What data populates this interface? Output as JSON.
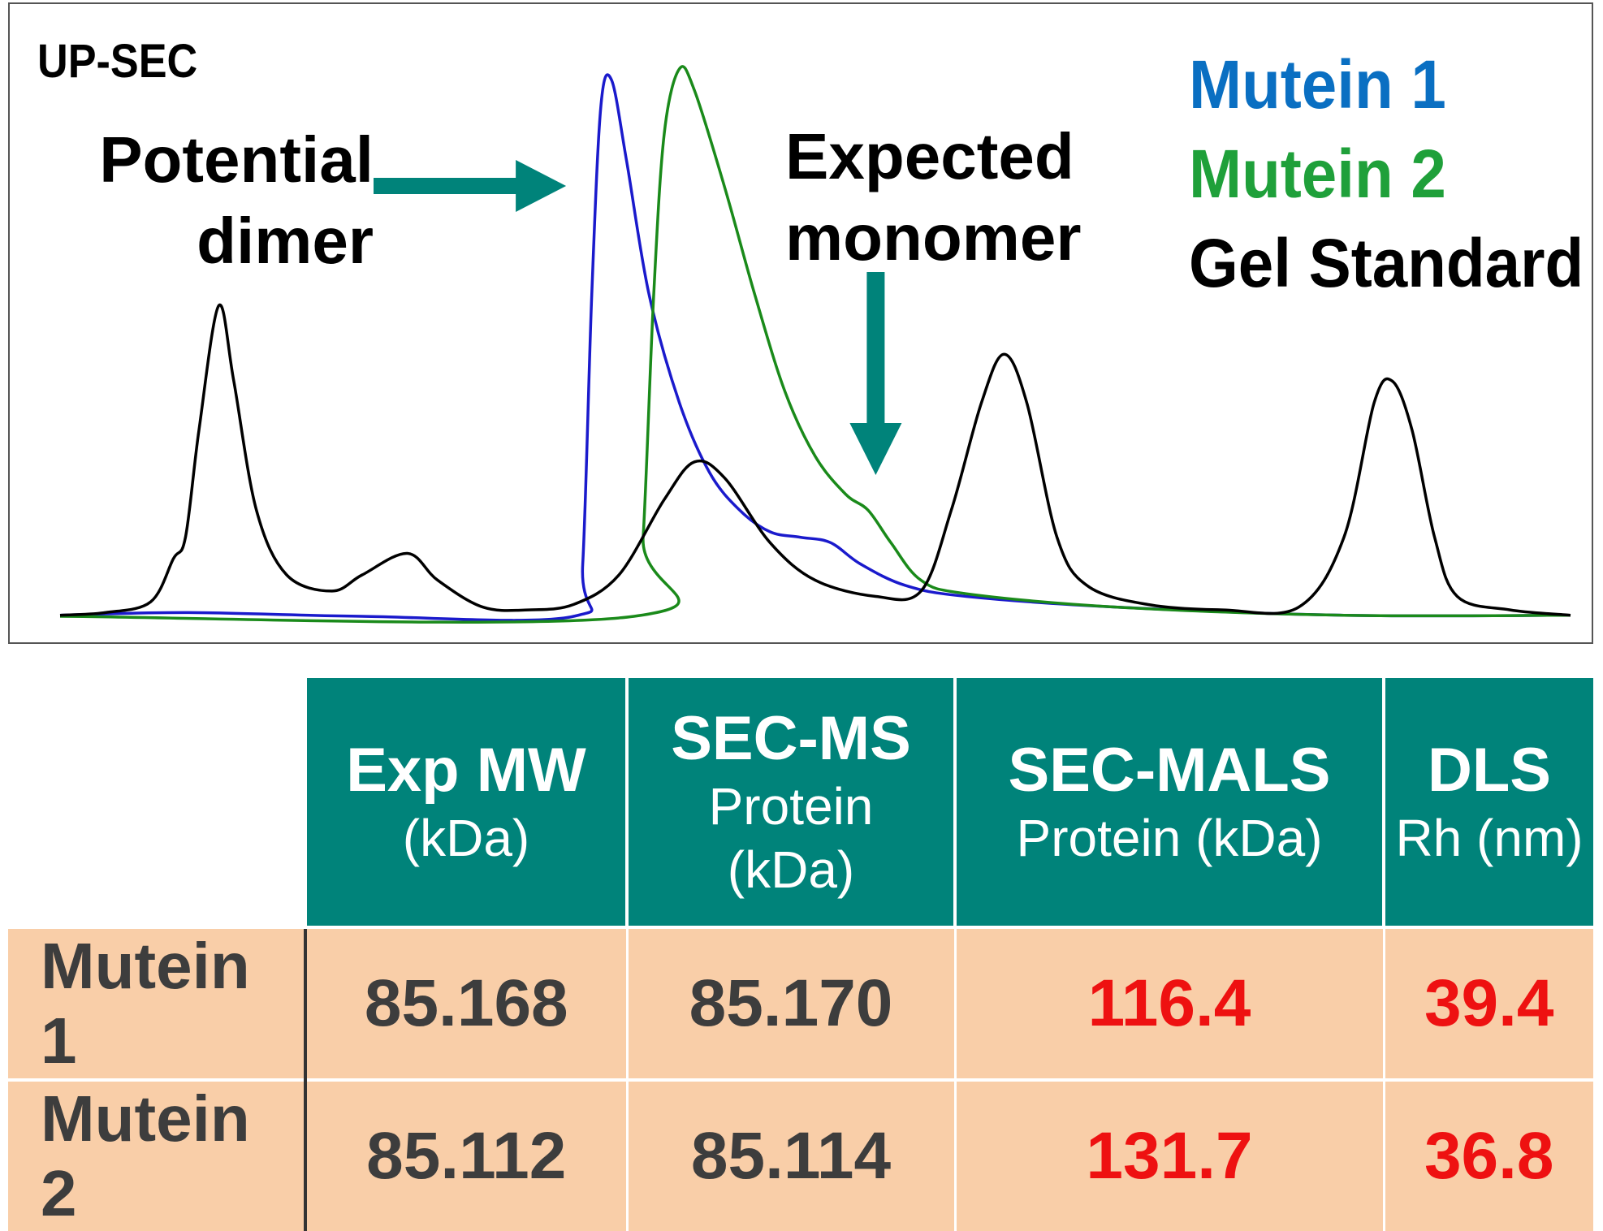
{
  "chart_data": {
    "type": "line",
    "title": "UP-SEC",
    "xlabel": "",
    "ylabel": "",
    "grid": false,
    "legend_placement": "top-right",
    "series": [
      {
        "name": "Mutein 1",
        "color": "#0a6fc2",
        "line_color": "#1a1acc",
        "points": [
          [
            0,
            0.005
          ],
          [
            8.5,
            0.01
          ],
          [
            20,
            0.003
          ],
          [
            34,
            0.003
          ],
          [
            34.6,
            0.1
          ],
          [
            35.2,
            0.6
          ],
          [
            35.8,
            0.95
          ],
          [
            36.5,
            1.0
          ],
          [
            37.5,
            0.85
          ],
          [
            39,
            0.6
          ],
          [
            41,
            0.4
          ],
          [
            43,
            0.27
          ],
          [
            45,
            0.2
          ],
          [
            47,
            0.16
          ],
          [
            49,
            0.15
          ],
          [
            51,
            0.14
          ],
          [
            53,
            0.1
          ],
          [
            56,
            0.06
          ],
          [
            60,
            0.04
          ],
          [
            70,
            0.02
          ],
          [
            85,
            0.005
          ],
          [
            100,
            0.005
          ]
        ]
      },
      {
        "name": "Mutein 2",
        "color": "#1fa03a",
        "line_color": "#1a8a1a",
        "points": [
          [
            0,
            0.003
          ],
          [
            38,
            0.003
          ],
          [
            38.6,
            0.15
          ],
          [
            39.3,
            0.6
          ],
          [
            40,
            0.9
          ],
          [
            41,
            1.02
          ],
          [
            42,
            0.98
          ],
          [
            44,
            0.8
          ],
          [
            46,
            0.6
          ],
          [
            48,
            0.42
          ],
          [
            50,
            0.3
          ],
          [
            52,
            0.23
          ],
          [
            53.5,
            0.2
          ],
          [
            55,
            0.14
          ],
          [
            57,
            0.07
          ],
          [
            60,
            0.045
          ],
          [
            70,
            0.02
          ],
          [
            85,
            0.005
          ],
          [
            100,
            0.005
          ]
        ]
      },
      {
        "name": "Gel Standard",
        "color": "#000000",
        "line_color": "#000000",
        "points": [
          [
            0,
            0.005
          ],
          [
            3,
            0.01
          ],
          [
            6,
            0.03
          ],
          [
            7.5,
            0.11
          ],
          [
            8.3,
            0.15
          ],
          [
            9.2,
            0.35
          ],
          [
            10.5,
            0.58
          ],
          [
            11.5,
            0.44
          ],
          [
            13,
            0.2
          ],
          [
            15,
            0.08
          ],
          [
            18,
            0.05
          ],
          [
            20,
            0.08
          ],
          [
            23,
            0.12
          ],
          [
            25,
            0.07
          ],
          [
            28,
            0.02
          ],
          [
            31,
            0.015
          ],
          [
            34,
            0.025
          ],
          [
            37,
            0.08
          ],
          [
            40,
            0.22
          ],
          [
            42,
            0.29
          ],
          [
            44,
            0.26
          ],
          [
            47,
            0.14
          ],
          [
            50,
            0.07
          ],
          [
            54,
            0.04
          ],
          [
            57,
            0.05
          ],
          [
            59,
            0.2
          ],
          [
            61,
            0.4
          ],
          [
            62.5,
            0.49
          ],
          [
            64,
            0.4
          ],
          [
            66,
            0.15
          ],
          [
            68,
            0.06
          ],
          [
            72,
            0.025
          ],
          [
            77,
            0.015
          ],
          [
            82,
            0.02
          ],
          [
            85,
            0.15
          ],
          [
            87,
            0.4
          ],
          [
            88.2,
            0.44
          ],
          [
            89.5,
            0.35
          ],
          [
            91,
            0.15
          ],
          [
            92.5,
            0.04
          ],
          [
            96,
            0.015
          ],
          [
            100,
            0.005
          ]
        ]
      }
    ],
    "xlim": [
      0,
      100
    ],
    "ylim": [
      0,
      1.05
    ],
    "annotations": [
      {
        "text": "Potential dimer",
        "arrow": "right",
        "color": "#00837a",
        "target_x": 33.5
      },
      {
        "text": "Expected monomer",
        "arrow": "down",
        "color": "#00837a",
        "target_x": 54
      }
    ]
  },
  "table": {
    "headers": [
      {
        "main": "",
        "sub": []
      },
      {
        "main": "Exp MW",
        "sub": [
          "(kDa)"
        ]
      },
      {
        "main": "SEC-MS",
        "sub": [
          "Protein",
          "(kDa)"
        ]
      },
      {
        "main": "SEC-MALS",
        "sub": [
          "Protein (kDa)"
        ]
      },
      {
        "main": "DLS",
        "sub": [
          "Rh (nm)"
        ]
      }
    ],
    "rows": [
      {
        "label": "Mutein 1",
        "values": [
          "85.168",
          "85.170",
          "116.4",
          "39.4"
        ]
      },
      {
        "label": "Mutein 2",
        "values": [
          "85.112",
          "85.114",
          "131.7",
          "36.8"
        ]
      }
    ],
    "highlight_color": "#ee1111",
    "header_color": "#00837a",
    "row_color": "#f9cea8"
  },
  "ui": {
    "annot_dimer_line1": "Potential",
    "annot_dimer_line2": "dimer",
    "annot_monomer_line1": "Expected",
    "annot_monomer_line2": "monomer"
  }
}
